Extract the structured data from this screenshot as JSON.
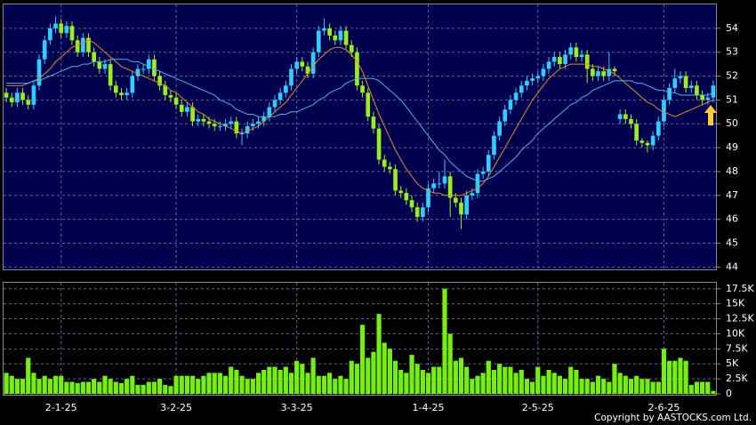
{
  "chart_data": [
    {
      "type": "candlestick",
      "up_color": "#33ccff",
      "down_color": "#99ee22",
      "ylim": [
        43.9,
        55
      ],
      "yticks": [
        44,
        45,
        46,
        47,
        48,
        49,
        50,
        51,
        52,
        53,
        54
      ],
      "grid": true,
      "open": [
        51.3,
        51.1,
        50.9,
        51.3,
        51.0,
        50.8,
        51.6,
        52.7,
        53.5,
        54.0,
        54.2,
        53.8,
        54.1,
        53.5,
        53.0,
        53.6,
        53.0,
        52.6,
        52.3,
        52.5,
        51.6,
        51.3,
        51.2,
        51.3,
        52.0,
        52.3,
        52.3,
        52.7,
        52.0,
        51.6,
        51.2,
        51.1,
        50.8,
        50.5,
        50.7,
        50.1,
        50.2,
        50.1,
        50.0,
        49.9,
        49.9,
        50.0,
        50.1,
        49.6,
        49.6,
        49.9,
        50.0,
        50.1,
        50.3,
        50.7,
        51.0,
        51.3,
        51.6,
        52.3,
        52.6,
        52.4,
        52.1,
        53.0,
        53.9,
        54.0,
        53.7,
        53.5,
        53.9,
        53.3,
        53.0,
        51.6,
        51.3,
        50.3,
        49.8,
        48.5,
        48.2,
        48.1,
        47.2,
        47.1,
        46.8,
        46.5,
        46.1,
        46.5,
        47.3,
        47.5,
        47.5,
        47.8,
        46.9,
        46.7,
        46.2,
        47.0,
        47.1,
        47.9,
        48.0,
        48.7,
        49.5,
        50.1,
        50.6,
        51.0,
        51.3,
        51.6,
        51.8,
        51.9,
        52.0,
        52.3,
        52.6,
        52.8,
        52.5,
        52.9,
        53.2,
        52.8,
        52.9,
        52.3,
        52.0,
        52.2,
        52.0,
        52.3,
        50.2,
        50.4,
        50.2,
        50.0,
        49.3,
        49.2,
        49.1,
        49.5,
        50.1,
        51.0,
        51.5,
        51.9,
        52.0,
        51.5,
        51.6,
        51.2,
        51.0,
        51.1
      ],
      "high": [
        51.5,
        51.3,
        51.5,
        51.5,
        51.2,
        51.8,
        52.9,
        53.7,
        54.2,
        54.5,
        54.4,
        54.3,
        54.3,
        53.7,
        53.8,
        53.8,
        53.2,
        52.8,
        52.7,
        52.7,
        51.8,
        51.5,
        51.5,
        52.2,
        52.5,
        52.5,
        52.9,
        52.9,
        52.2,
        51.8,
        51.4,
        51.3,
        51.0,
        50.9,
        50.9,
        50.4,
        50.4,
        50.3,
        50.2,
        50.1,
        50.2,
        50.3,
        50.3,
        49.8,
        50.1,
        50.2,
        50.3,
        50.5,
        50.9,
        51.2,
        51.5,
        51.8,
        52.5,
        52.8,
        52.8,
        52.6,
        53.2,
        54.1,
        54.4,
        54.2,
        53.9,
        54.1,
        54.1,
        53.5,
        53.2,
        51.8,
        51.5,
        50.5,
        50.0,
        48.7,
        48.4,
        48.3,
        47.4,
        47.3,
        47.0,
        46.7,
        46.7,
        47.5,
        47.7,
        48.0,
        48.5,
        48.0,
        47.1,
        46.9,
        47.2,
        47.3,
        48.1,
        48.2,
        48.9,
        49.7,
        50.3,
        50.8,
        51.2,
        51.5,
        51.8,
        52.0,
        52.1,
        52.2,
        52.5,
        52.8,
        53.0,
        53.0,
        53.1,
        53.4,
        53.4,
        53.1,
        53.1,
        52.5,
        52.4,
        52.4,
        53.0,
        52.4,
        50.6,
        50.6,
        50.4,
        50.2,
        49.4,
        49.3,
        49.7,
        50.3,
        51.2,
        51.7,
        52.3,
        52.2,
        52.2,
        51.8,
        51.8,
        51.4,
        51.3,
        51.8
      ],
      "low": [
        50.9,
        50.7,
        50.7,
        50.8,
        50.6,
        50.6,
        51.4,
        52.5,
        53.3,
        53.8,
        53.6,
        53.6,
        53.3,
        52.8,
        52.8,
        52.8,
        52.4,
        52.1,
        52.1,
        51.4,
        51.1,
        51.0,
        51.0,
        51.1,
        51.8,
        52.1,
        52.1,
        51.8,
        51.4,
        51.0,
        50.9,
        50.6,
        50.3,
        50.3,
        49.9,
        49.9,
        49.9,
        49.8,
        49.7,
        49.7,
        49.7,
        49.8,
        49.4,
        49.1,
        49.4,
        49.7,
        49.8,
        49.9,
        50.1,
        50.5,
        50.8,
        51.1,
        51.4,
        52.1,
        52.2,
        51.9,
        51.9,
        52.8,
        53.7,
        53.5,
        53.3,
        53.3,
        53.1,
        52.8,
        51.4,
        51.1,
        50.1,
        49.6,
        48.3,
        48.0,
        47.9,
        47.0,
        46.9,
        46.6,
        46.3,
        45.9,
        45.9,
        46.3,
        47.1,
        47.3,
        47.3,
        46.1,
        46.5,
        45.6,
        46.0,
        46.8,
        46.9,
        47.7,
        47.8,
        48.5,
        49.3,
        49.9,
        50.4,
        50.8,
        51.1,
        51.4,
        51.6,
        51.7,
        51.8,
        52.1,
        52.4,
        52.3,
        52.3,
        52.7,
        52.6,
        52.6,
        51.7,
        51.8,
        51.8,
        51.8,
        51.8,
        52.0,
        50.0,
        50.0,
        49.8,
        49.1,
        49.0,
        48.8,
        48.9,
        49.3,
        49.9,
        50.8,
        51.3,
        51.7,
        51.3,
        51.3,
        51.0,
        50.8,
        50.8,
        50.9
      ],
      "close": [
        51.1,
        50.9,
        51.3,
        51.0,
        50.8,
        51.6,
        52.7,
        53.5,
        54.0,
        54.2,
        53.8,
        54.1,
        53.5,
        53.0,
        53.6,
        53.0,
        52.6,
        52.3,
        52.5,
        51.6,
        51.3,
        51.2,
        51.3,
        52.0,
        52.3,
        52.3,
        52.7,
        52.0,
        51.6,
        51.2,
        51.1,
        50.8,
        50.5,
        50.7,
        50.1,
        50.2,
        50.1,
        50.0,
        49.9,
        49.9,
        50.0,
        50.1,
        49.6,
        49.6,
        49.9,
        50.0,
        50.1,
        50.3,
        50.7,
        51.0,
        51.3,
        51.6,
        52.3,
        52.6,
        52.4,
        52.1,
        53.0,
        53.9,
        54.0,
        53.7,
        53.5,
        53.9,
        53.3,
        53.0,
        51.6,
        51.3,
        50.3,
        49.8,
        48.5,
        48.2,
        48.1,
        47.2,
        47.1,
        46.8,
        46.5,
        46.1,
        46.5,
        47.3,
        47.5,
        47.5,
        47.8,
        46.9,
        46.7,
        46.2,
        47.0,
        47.1,
        47.9,
        48.0,
        48.7,
        49.5,
        50.1,
        50.6,
        51.0,
        51.3,
        51.6,
        51.8,
        51.9,
        52.0,
        52.3,
        52.6,
        52.8,
        52.5,
        52.9,
        53.2,
        52.8,
        52.9,
        52.3,
        52.0,
        52.2,
        52.0,
        52.3,
        52.2,
        50.4,
        50.2,
        50.0,
        49.3,
        49.2,
        49.1,
        49.5,
        50.1,
        51.0,
        51.5,
        51.9,
        52.0,
        51.5,
        51.6,
        51.2,
        51.0,
        51.1,
        51.6
      ],
      "series": [
        {
          "color": "#e08a2c",
          "values": [
            51.6,
            51.6,
            51.6,
            51.6,
            51.7,
            51.8,
            51.9,
            52.1,
            52.3,
            52.6,
            52.8,
            53.0,
            53.2,
            53.3,
            53.4,
            53.5,
            53.4,
            53.2,
            53.0,
            52.8,
            52.6,
            52.4,
            52.3,
            52.2,
            52.1,
            52.0,
            51.9,
            51.8,
            51.7,
            51.6,
            51.4,
            51.3,
            51.1,
            50.9,
            50.7,
            50.5,
            50.4,
            50.2,
            50.1,
            50.0,
            49.9,
            49.8,
            49.7,
            49.6,
            49.7,
            49.8,
            49.9,
            50.1,
            50.3,
            50.5,
            50.7,
            50.9,
            51.2,
            51.5,
            51.8,
            52.1,
            52.4,
            52.7,
            52.9,
            53.1,
            53.2,
            53.2,
            53.1,
            52.9,
            52.6,
            52.2,
            51.6,
            51.0,
            50.4,
            49.9,
            49.4,
            48.9,
            48.5,
            48.1,
            47.8,
            47.5,
            47.3,
            47.2,
            47.1,
            47.1,
            47.0,
            47.0,
            47.0,
            47.0,
            47.1,
            47.2,
            47.3,
            47.5,
            47.8,
            48.2,
            48.6,
            49.0,
            49.4,
            49.8,
            50.2,
            50.6,
            51.0,
            51.3,
            51.6,
            51.9,
            52.1,
            52.3,
            52.4,
            52.5,
            52.5,
            52.5,
            52.5,
            52.4,
            52.4,
            52.3,
            52.2,
            52.1,
            51.9,
            51.7,
            51.5,
            51.3,
            51.1,
            50.9,
            50.8,
            50.6,
            50.5,
            50.4,
            50.3,
            50.4,
            50.5,
            50.6,
            50.7,
            50.8,
            50.9,
            51.0
          ]
        },
        {
          "color": "#4fb3e8",
          "values": [
            51.7,
            51.7,
            51.7,
            51.7,
            51.7,
            51.8,
            51.8,
            51.9,
            52.0,
            52.1,
            52.2,
            52.3,
            52.4,
            52.4,
            52.5,
            52.5,
            52.6,
            52.6,
            52.6,
            52.7,
            52.7,
            52.7,
            52.7,
            52.6,
            52.6,
            52.5,
            52.4,
            52.3,
            52.2,
            52.1,
            52.0,
            51.9,
            51.8,
            51.7,
            51.6,
            51.5,
            51.4,
            51.3,
            51.2,
            51.0,
            50.9,
            50.8,
            50.6,
            50.5,
            50.4,
            50.4,
            50.3,
            50.3,
            50.3,
            50.3,
            50.4,
            50.4,
            50.5,
            50.5,
            50.6,
            50.7,
            50.8,
            51.0,
            51.1,
            51.3,
            51.4,
            51.5,
            51.7,
            51.8,
            51.9,
            51.9,
            51.9,
            51.9,
            51.8,
            51.6,
            51.4,
            51.2,
            51.0,
            50.7,
            50.4,
            50.1,
            49.8,
            49.5,
            49.2,
            48.9,
            48.7,
            48.4,
            48.2,
            48.0,
            47.8,
            47.7,
            47.6,
            47.6,
            47.7,
            47.8,
            48.0,
            48.2,
            48.4,
            48.6,
            48.9,
            49.1,
            49.3,
            49.6,
            49.8,
            50.0,
            50.2,
            50.4,
            50.6,
            50.8,
            50.9,
            51.1,
            51.2,
            51.4,
            51.5,
            51.6,
            51.7,
            51.8,
            51.8,
            51.8,
            51.8,
            51.7,
            51.7,
            51.6,
            51.5,
            51.4,
            51.4,
            51.3,
            51.3,
            51.2,
            51.2,
            51.2,
            51.2,
            51.2,
            51.2,
            51.3
          ]
        }
      ]
    },
    {
      "type": "bar",
      "color": "#77ee11",
      "ylim": [
        0,
        18500
      ],
      "grid": true,
      "yticks": [
        0,
        {
          "value": 2500,
          "label": "2.5K"
        },
        {
          "value": 5000,
          "label": "5K"
        },
        {
          "value": 7500,
          "label": "7.5K"
        },
        {
          "value": 10000,
          "label": "10K"
        },
        {
          "value": 12500,
          "label": "12.5K"
        },
        {
          "value": 15000,
          "label": "15K"
        },
        {
          "value": 17500,
          "label": "17.5K"
        }
      ],
      "categories": [
        null,
        null,
        null,
        null,
        null,
        null,
        null,
        null,
        null,
        null,
        "2-1-25",
        null,
        null,
        null,
        null,
        null,
        null,
        null,
        null,
        null,
        null,
        null,
        null,
        null,
        null,
        null,
        null,
        null,
        null,
        null,
        null,
        "3-2-25",
        null,
        null,
        null,
        null,
        null,
        null,
        null,
        null,
        null,
        null,
        null,
        null,
        null,
        null,
        null,
        null,
        null,
        null,
        null,
        null,
        null,
        "3-3-25",
        null,
        null,
        null,
        null,
        null,
        null,
        null,
        null,
        null,
        null,
        null,
        null,
        null,
        null,
        null,
        null,
        null,
        null,
        null,
        null,
        null,
        null,
        null,
        "1-4-25",
        null,
        null,
        null,
        null,
        null,
        null,
        null,
        null,
        null,
        null,
        null,
        null,
        null,
        null,
        null,
        null,
        null,
        null,
        null,
        "2-5-25",
        null,
        null,
        null,
        null,
        null,
        null,
        null,
        null,
        null,
        null,
        null,
        null,
        null,
        null,
        null,
        null,
        null,
        null,
        null,
        null,
        null,
        null,
        "2-6-25",
        null,
        null,
        null,
        null,
        null,
        null,
        null,
        null,
        null
      ],
      "values": [
        3500,
        3000,
        2500,
        2500,
        6000,
        3500,
        2500,
        3000,
        2500,
        3000,
        3000,
        2000,
        2000,
        1800,
        2000,
        2000,
        2500,
        2000,
        3000,
        2500,
        2000,
        1800,
        2500,
        3000,
        1500,
        1500,
        2000,
        2000,
        2500,
        1500,
        1300,
        3000,
        3000,
        3000,
        3000,
        2500,
        3000,
        3500,
        3500,
        3500,
        3000,
        4500,
        4000,
        3000,
        2500,
        2500,
        3500,
        4000,
        4500,
        4500,
        4000,
        4500,
        3500,
        5500,
        5000,
        3500,
        6000,
        3000,
        3000,
        3500,
        2500,
        3000,
        2500,
        5500,
        5000,
        11500,
        6000,
        7000,
        13300,
        8500,
        7500,
        5500,
        4000,
        3500,
        6500,
        5000,
        4000,
        3500,
        4500,
        4500,
        17500,
        10000,
        5500,
        6000,
        4500,
        2500,
        3000,
        3500,
        5500,
        4000,
        5000,
        4500,
        4500,
        3500,
        4000,
        2500,
        2000,
        4500,
        3000,
        4000,
        3500,
        3000,
        2500,
        4500,
        4000,
        2500,
        2500,
        2000,
        3000,
        2500,
        2000,
        5000,
        3500,
        3000,
        2500,
        3000,
        2500,
        2500,
        2000,
        2000,
        7500,
        5500,
        5500,
        6000,
        5500,
        1500,
        2000,
        2000,
        2000,
        500
      ]
    }
  ],
  "copyright": "Copyright by AASTOCKS.com Ltd."
}
